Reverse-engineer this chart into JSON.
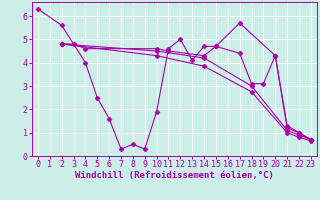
{
  "background_color": "#cceee8",
  "grid_color": "#ffffff",
  "line_color": "#aa00aa",
  "marker": "D",
  "marker_size": 2.5,
  "xlabel": "Windchill (Refroidissement éolien,°C)",
  "xlabel_fontsize": 6.5,
  "tick_fontsize": 6,
  "xlim": [
    -0.5,
    23.5
  ],
  "ylim": [
    0,
    6.6
  ],
  "yticks": [
    0,
    1,
    2,
    3,
    4,
    5,
    6
  ],
  "xticks": [
    0,
    1,
    2,
    3,
    4,
    5,
    6,
    7,
    8,
    9,
    10,
    11,
    12,
    13,
    14,
    15,
    16,
    17,
    18,
    19,
    20,
    21,
    22,
    23
  ],
  "series": [
    {
      "x": [
        0,
        2,
        3,
        4,
        5,
        6,
        7,
        8,
        9,
        10,
        11,
        12,
        13,
        14,
        15,
        17,
        20,
        21,
        22,
        23
      ],
      "y": [
        6.3,
        5.6,
        4.8,
        4.0,
        2.5,
        1.6,
        0.3,
        0.5,
        0.3,
        1.9,
        4.6,
        5.0,
        4.1,
        4.7,
        4.7,
        5.7,
        4.3,
        1.2,
        1.0,
        0.7
      ]
    },
    {
      "x": [
        2,
        3,
        4,
        10,
        11,
        14,
        15,
        17,
        18,
        19,
        20,
        21,
        22,
        23
      ],
      "y": [
        4.8,
        4.8,
        4.6,
        4.6,
        4.5,
        4.3,
        4.7,
        4.4,
        3.1,
        3.1,
        4.3,
        1.3,
        1.0,
        0.7
      ]
    },
    {
      "x": [
        2,
        10,
        14,
        18,
        21,
        22,
        23
      ],
      "y": [
        4.8,
        4.5,
        4.2,
        3.0,
        1.1,
        0.9,
        0.7
      ]
    },
    {
      "x": [
        2,
        10,
        14,
        18,
        21,
        22,
        23
      ],
      "y": [
        4.8,
        4.3,
        3.85,
        2.75,
        1.0,
        0.8,
        0.65
      ]
    }
  ]
}
